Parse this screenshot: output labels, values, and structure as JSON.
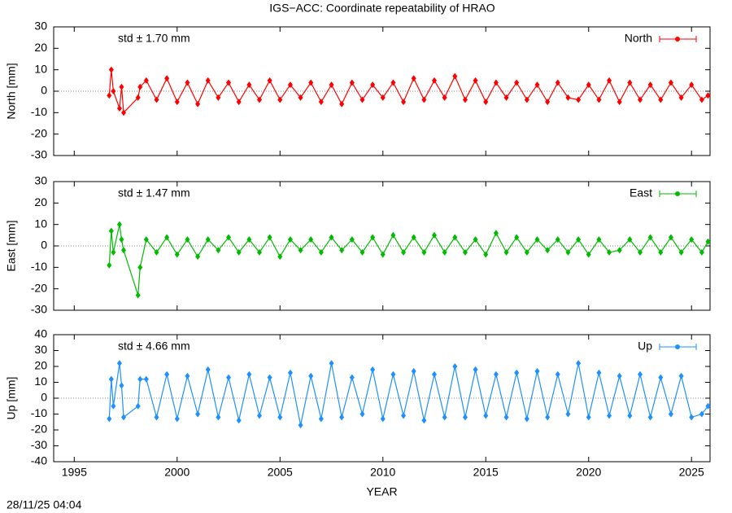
{
  "title": "IGS−ACC: Coordinate repeatability of HRAO",
  "timestamp": "28/11/25 04:04",
  "chart_data": [
    {
      "type": "line",
      "ylabel": "North [mm]",
      "annotation": "std ± 1.70 mm",
      "xlim": [
        1994,
        2025.9
      ],
      "ylim": [
        -30,
        30
      ],
      "yticks": [
        -30,
        -20,
        -10,
        0,
        10,
        20,
        30
      ],
      "legend": "top-right",
      "x": [
        1996.7,
        1996.8,
        1996.9,
        1997.2,
        1997.3,
        1997.4,
        1998.1,
        1998.2,
        1998.5,
        1999,
        1999.5,
        2000,
        2000.5,
        2001,
        2001.5,
        2002,
        2002.5,
        2003,
        2003.5,
        2004,
        2004.5,
        2005,
        2005.5,
        2006,
        2006.5,
        2007,
        2007.5,
        2008,
        2008.5,
        2009,
        2009.5,
        2010,
        2010.5,
        2011,
        2011.5,
        2012,
        2012.5,
        2013,
        2013.5,
        2014,
        2014.5,
        2015,
        2015.5,
        2016,
        2016.5,
        2017,
        2017.5,
        2018,
        2018.5,
        2019,
        2019.5,
        2020,
        2020.5,
        2021,
        2021.5,
        2022,
        2022.5,
        2023,
        2023.5,
        2024,
        2024.5,
        2025,
        2025.5,
        2025.8
      ],
      "series": [
        {
          "name": "North",
          "color": "#ff0000",
          "values": [
            -2,
            10,
            0,
            -8,
            2,
            -10,
            -3,
            2,
            5,
            -4,
            6,
            -5,
            4,
            -6,
            5,
            -3,
            4,
            -5,
            3,
            -4,
            5,
            -4,
            3,
            -3,
            4,
            -5,
            3,
            -6,
            4,
            -4,
            3,
            -3,
            4,
            -5,
            6,
            -4,
            5,
            -3,
            7,
            -4,
            5,
            -5,
            4,
            -3,
            4,
            -4,
            3,
            -5,
            4,
            -3,
            -4,
            3,
            -4,
            5,
            -5,
            4,
            -4,
            3,
            -4,
            4,
            -3,
            3,
            -4,
            -2
          ]
        }
      ]
    },
    {
      "type": "line",
      "ylabel": "East [mm]",
      "annotation": "std ± 1.47 mm",
      "xlim": [
        1994,
        2025.9
      ],
      "ylim": [
        -30,
        30
      ],
      "yticks": [
        -30,
        -20,
        -10,
        0,
        10,
        20,
        30
      ],
      "legend": "top-right",
      "x": [
        1996.7,
        1996.8,
        1996.9,
        1997.2,
        1997.3,
        1997.4,
        1998.1,
        1998.2,
        1998.5,
        1999,
        1999.5,
        2000,
        2000.5,
        2001,
        2001.5,
        2002,
        2002.5,
        2003,
        2003.5,
        2004,
        2004.5,
        2005,
        2005.5,
        2006,
        2006.5,
        2007,
        2007.5,
        2008,
        2008.5,
        2009,
        2009.5,
        2010,
        2010.5,
        2011,
        2011.5,
        2012,
        2012.5,
        2013,
        2013.5,
        2014,
        2014.5,
        2015,
        2015.5,
        2016,
        2016.5,
        2017,
        2017.5,
        2018,
        2018.5,
        2019,
        2019.5,
        2020,
        2020.5,
        2021,
        2021.5,
        2022,
        2022.5,
        2023,
        2023.5,
        2024,
        2024.5,
        2025,
        2025.5,
        2025.8
      ],
      "series": [
        {
          "name": "East",
          "color": "#00bb00",
          "values": [
            -9,
            7,
            -3,
            10,
            3,
            -2,
            -23,
            -10,
            3,
            -3,
            4,
            -4,
            3,
            -5,
            3,
            -2,
            4,
            -3,
            3,
            -3,
            4,
            -5,
            3,
            -2,
            3,
            -3,
            4,
            -2,
            3,
            -3,
            4,
            -4,
            5,
            -3,
            4,
            -3,
            5,
            -3,
            4,
            -3,
            3,
            -4,
            6,
            -3,
            4,
            -3,
            3,
            -2,
            3,
            -3,
            3,
            -4,
            3,
            -3,
            -2,
            3,
            -3,
            4,
            -3,
            4,
            -3,
            3,
            -3,
            2
          ]
        }
      ]
    },
    {
      "type": "line",
      "ylabel": "Up [mm]",
      "annotation": "std ± 4.66 mm",
      "xlabel": "YEAR",
      "xlim": [
        1994,
        2025.9
      ],
      "ylim": [
        -40,
        40
      ],
      "yticks": [
        -40,
        -30,
        -20,
        -10,
        0,
        10,
        20,
        30,
        40
      ],
      "xticks": [
        1995,
        2000,
        2005,
        2010,
        2015,
        2020,
        2025
      ],
      "legend": "top-right",
      "x": [
        1996.7,
        1996.8,
        1996.9,
        1997.2,
        1997.3,
        1997.4,
        1998.1,
        1998.2,
        1998.5,
        1999,
        1999.5,
        2000,
        2000.5,
        2001,
        2001.5,
        2002,
        2002.5,
        2003,
        2003.5,
        2004,
        2004.5,
        2005,
        2005.5,
        2006,
        2006.5,
        2007,
        2007.5,
        2008,
        2008.5,
        2009,
        2009.5,
        2010,
        2010.5,
        2011,
        2011.5,
        2012,
        2012.5,
        2013,
        2013.5,
        2014,
        2014.5,
        2015,
        2015.5,
        2016,
        2016.5,
        2017,
        2017.5,
        2018,
        2018.5,
        2019,
        2019.5,
        2020,
        2020.5,
        2021,
        2021.5,
        2022,
        2022.5,
        2023,
        2023.5,
        2024,
        2024.5,
        2025,
        2025.5,
        2025.8
      ],
      "series": [
        {
          "name": "Up",
          "color": "#1e90ff",
          "values": [
            -13,
            12,
            -5,
            22,
            8,
            -12,
            -5,
            12,
            12,
            -12,
            15,
            -13,
            14,
            -10,
            18,
            -12,
            13,
            -14,
            15,
            -11,
            13,
            -12,
            16,
            -17,
            14,
            -13,
            22,
            -12,
            13,
            -10,
            18,
            -13,
            15,
            -11,
            17,
            -14,
            15,
            -12,
            20,
            -12,
            18,
            -11,
            15,
            -12,
            16,
            -13,
            17,
            -12,
            15,
            -10,
            22,
            -12,
            16,
            -11,
            14,
            -11,
            15,
            -12,
            13,
            -10,
            14,
            -12,
            -10,
            -5
          ]
        }
      ]
    }
  ]
}
